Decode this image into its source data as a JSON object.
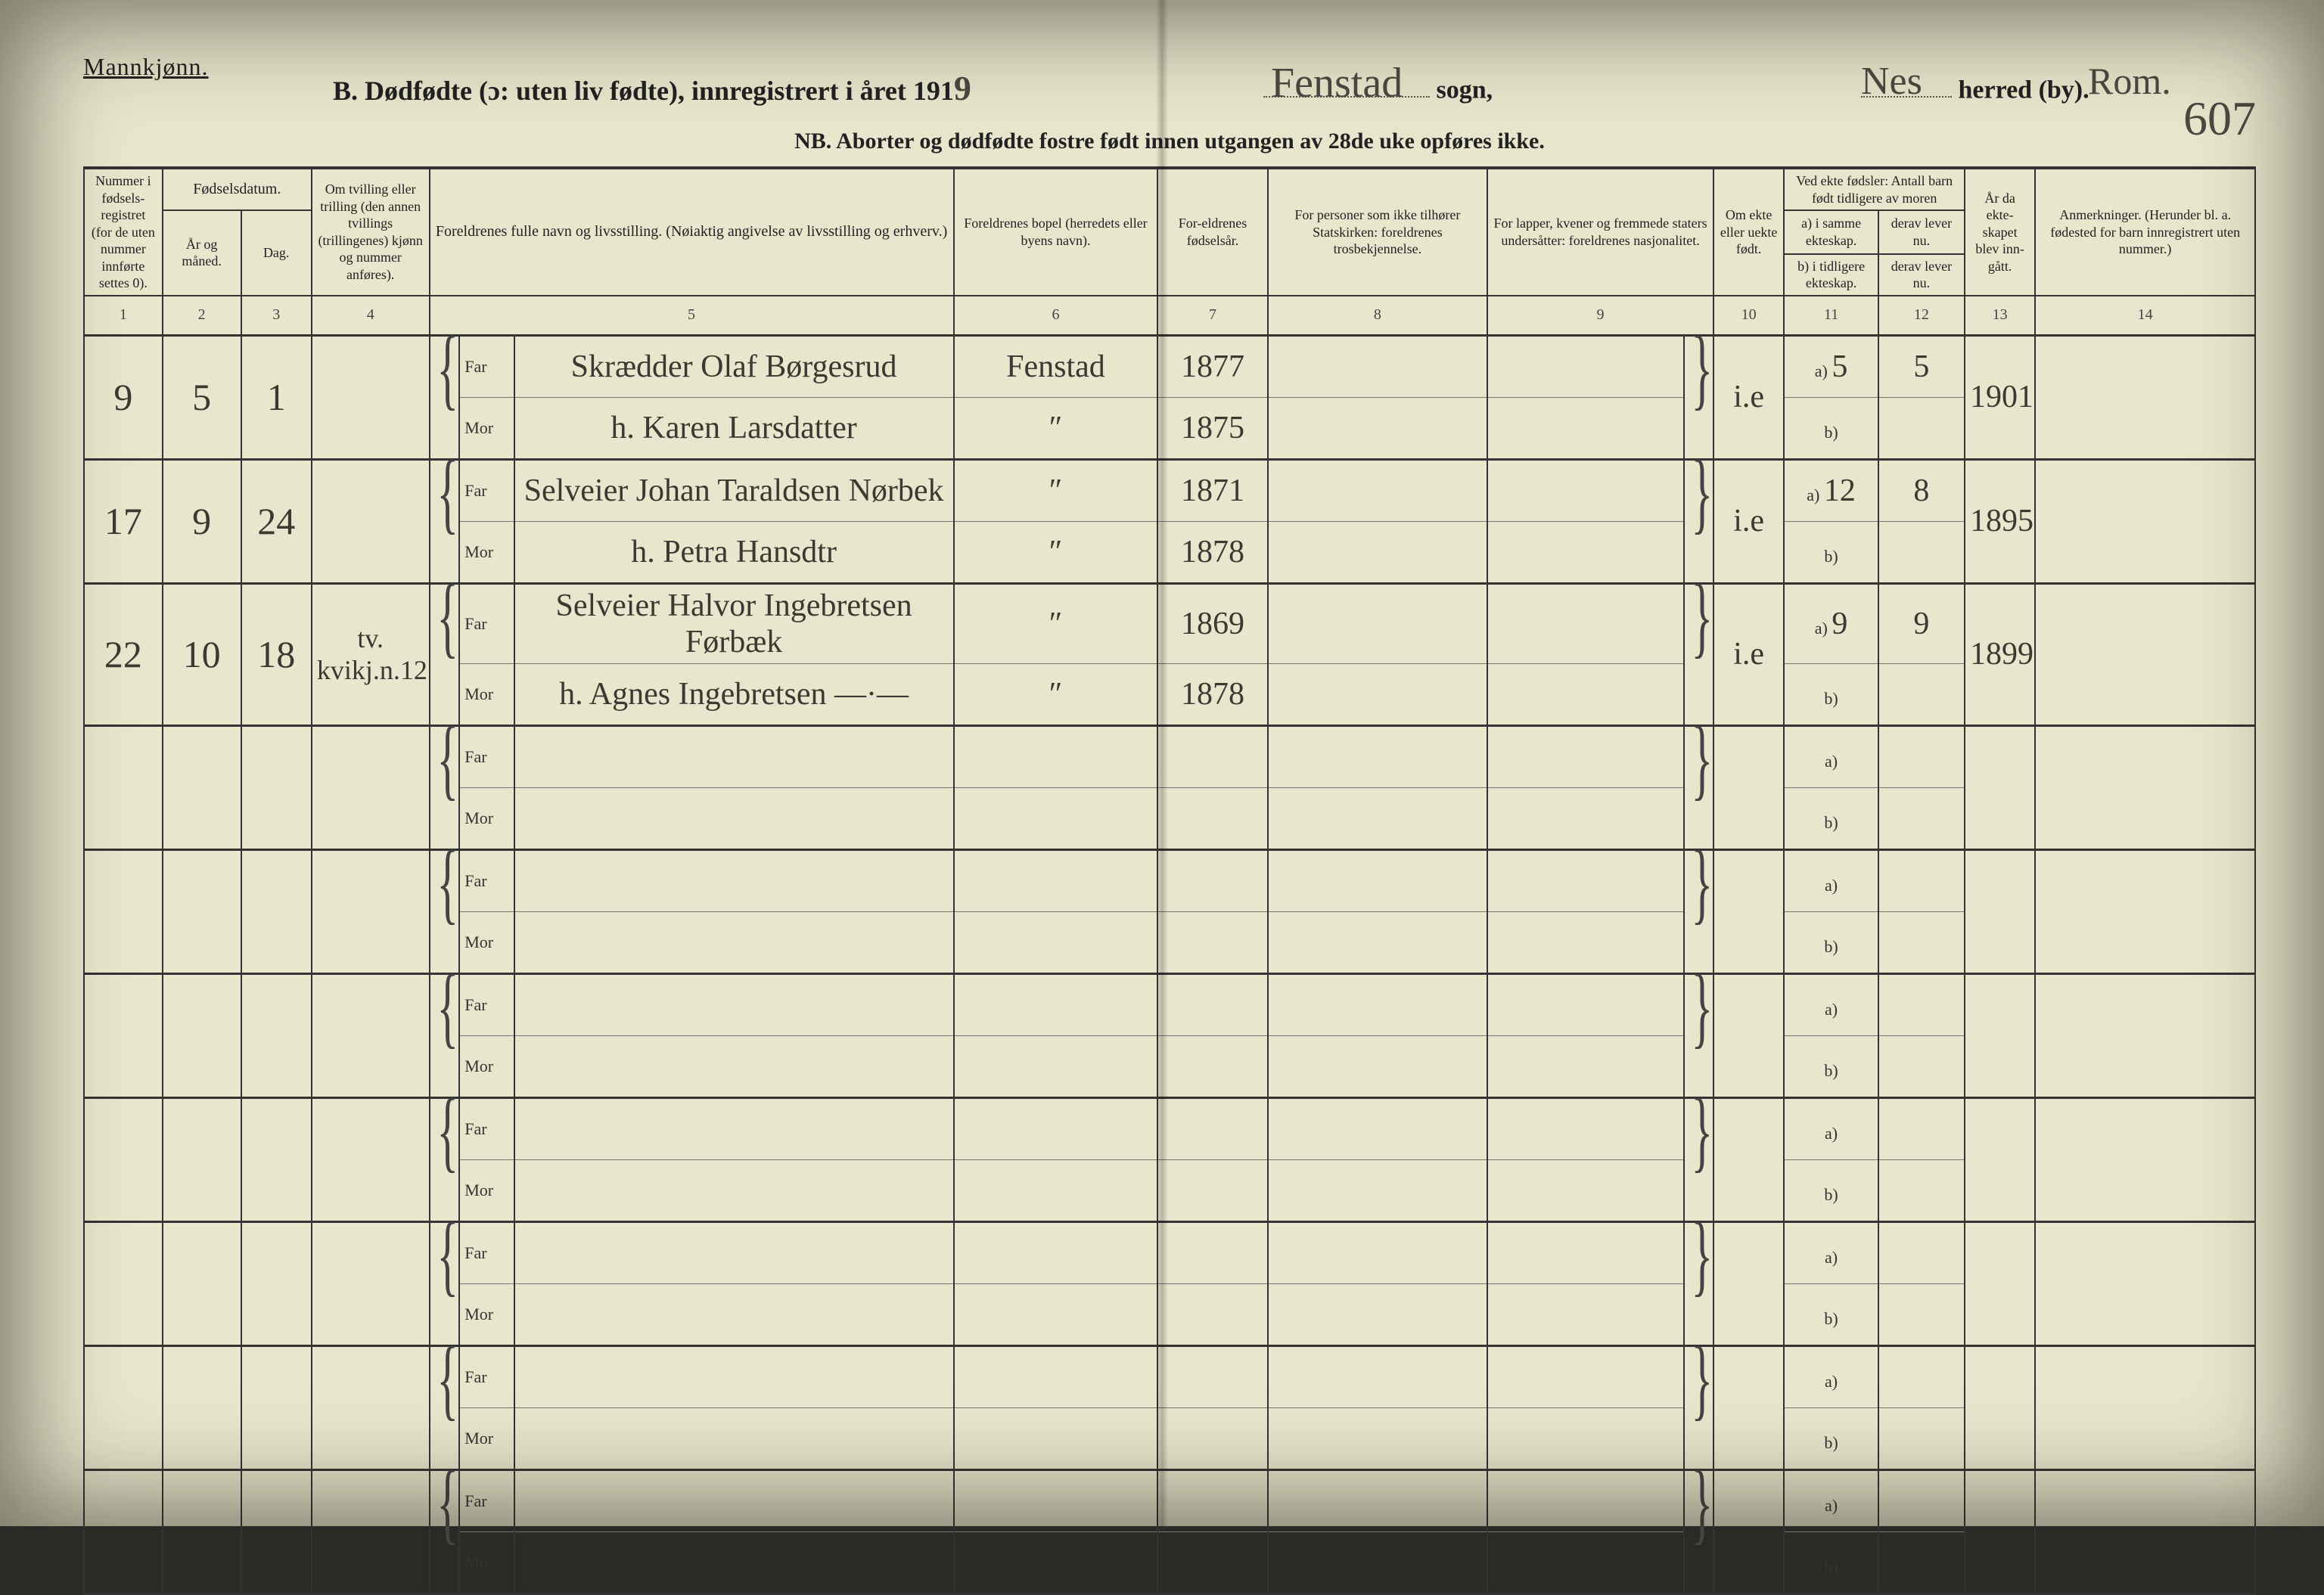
{
  "header": {
    "gender_label": "Mannkjønn.",
    "title_prefix": "B. Dødfødte (ɔ: uten liv fødte), innregistrert i året 191",
    "year_suffix": "9",
    "sogn_value": "Fenstad",
    "sogn_label": "sogn,",
    "herred_value": "Nes",
    "herred_label": "herred (by).",
    "amt_value": "Rom.",
    "page_number": "607",
    "nb_line": "NB. Aborter og dødfødte fostre født innen utgangen av 28de uke opføres ikke."
  },
  "columns": {
    "c1": "Nummer i fødsels-registret (for de uten nummer innførte settes 0).",
    "c_fd": "Fødselsdatum.",
    "c2": "År og måned.",
    "c3": "Dag.",
    "c4": "Om tvilling eller trilling (den annen tvillings (trillingenes) kjønn og nummer anføres).",
    "c5": "Foreldrenes fulle navn og livsstilling. (Nøiaktig angivelse av livsstilling og erhverv.)",
    "c6": "Foreldrenes bopel (herredets eller byens navn).",
    "c7": "For-eldrenes fødselsår.",
    "c8": "For personer som ikke tilhører Statskirken: foreldrenes trosbekjennelse.",
    "c9": "For lapper, kvener og fremmede staters undersåtter: foreldrenes nasjonalitet.",
    "c10": "Om ekte eller uekte født.",
    "c11_top": "Ved ekte fødsler: Antall barn født tidligere av moren",
    "c11a": "a) i samme ekteskap.",
    "c11b": "b) i tidligere ekteskap.",
    "c12a": "derav lever nu.",
    "c12b": "derav lever nu.",
    "c13": "År da ekte-skapet blev inn-gått.",
    "c14": "Anmerkninger. (Herunder bl. a. fødested for barn innregistrert uten nummer.)",
    "nums": [
      "1",
      "2",
      "3",
      "4",
      "5",
      "6",
      "7",
      "8",
      "9",
      "10",
      "11",
      "12",
      "13",
      "14"
    ]
  },
  "labels": {
    "far": "Far",
    "mor": "Mor",
    "a": "a)",
    "b": "b)"
  },
  "rows": [
    {
      "num": "9",
      "ym": "5",
      "day": "1",
      "twin": "",
      "far": "Skrædder Olaf Børgesrud",
      "mor": "h. Karen Larsdatter",
      "bopel_far": "Fenstad",
      "bopel_mor": "″",
      "fy_far": "1877",
      "fy_mor": "1875",
      "ekte": "i.e",
      "a_count": "5",
      "a_live": "5",
      "b_count": "",
      "b_live": "",
      "year_marr": "1901",
      "anm": ""
    },
    {
      "num": "17",
      "ym": "9",
      "day": "24",
      "twin": "",
      "far": "Selveier Johan Taraldsen Nørbek",
      "mor": "h. Petra Hansdtr",
      "bopel_far": "″",
      "bopel_mor": "″",
      "fy_far": "1871",
      "fy_mor": "1878",
      "ekte": "i.e",
      "a_count": "12",
      "a_live": "8",
      "b_count": "",
      "b_live": "",
      "year_marr": "1895",
      "anm": ""
    },
    {
      "num": "22",
      "ym": "10",
      "day": "18",
      "twin": "tv.\nkvikj.n.12",
      "far": "Selveier Halvor Ingebretsen Førbæk",
      "mor": "h. Agnes Ingebretsen  ―·―",
      "bopel_far": "″",
      "bopel_mor": "″",
      "fy_far": "1869",
      "fy_mor": "1878",
      "ekte": "i.e",
      "a_count": "9",
      "a_live": "9",
      "b_count": "",
      "b_live": "",
      "year_marr": "1899",
      "anm": ""
    },
    {
      "empty": true
    },
    {
      "empty": true
    },
    {
      "empty": true
    },
    {
      "empty": true
    },
    {
      "empty": true
    },
    {
      "empty": true
    },
    {
      "empty": true
    }
  ],
  "style": {
    "paper_bg": "#e8e6cc",
    "ink": "#2b2b22",
    "rule": "#333333",
    "hand_ink": "#3a3a33",
    "font_print": "Times New Roman",
    "font_hand": "Brush Script MT"
  }
}
